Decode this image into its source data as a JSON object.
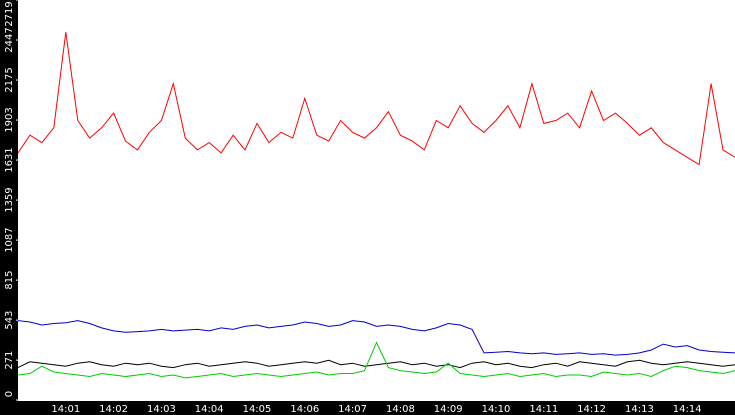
{
  "chart_data": {
    "type": "line",
    "categories": [
      null,
      null,
      null,
      null,
      "14:01",
      null,
      null,
      null,
      "14:02",
      null,
      null,
      null,
      "14:03",
      null,
      null,
      null,
      "14:04",
      null,
      null,
      null,
      "14:05",
      null,
      null,
      null,
      "14:06",
      null,
      null,
      null,
      "14:07",
      null,
      null,
      null,
      "14:08",
      null,
      null,
      null,
      "14:09",
      null,
      null,
      null,
      "14:10",
      null,
      null,
      null,
      "14:11",
      null,
      null,
      null,
      "14:12",
      null,
      null,
      null,
      "14:13",
      null,
      null,
      null,
      "14:14",
      null,
      null,
      null,
      null
    ],
    "series": [
      {
        "color": "#ff0000",
        "values": [
          1680,
          1800,
          1750,
          1850,
          2500,
          1900,
          1780,
          1850,
          1950,
          1760,
          1700,
          1820,
          1900,
          2150,
          1780,
          1700,
          1750,
          1680,
          1800,
          1700,
          1880,
          1750,
          1820,
          1780,
          2050,
          1800,
          1760,
          1900,
          1820,
          1780,
          1850,
          1960,
          1800,
          1760,
          1700,
          1900,
          1850,
          2000,
          1880,
          1820,
          1900,
          2000,
          1850,
          2150,
          1880,
          1900,
          1950,
          1850,
          2100,
          1900,
          1950,
          1880,
          1800,
          1850,
          1750,
          1700,
          1650,
          1600,
          2150,
          1700,
          1650
        ]
      },
      {
        "color": "#0000cc",
        "values": [
          540,
          530,
          510,
          520,
          525,
          540,
          520,
          490,
          470,
          460,
          465,
          470,
          480,
          470,
          475,
          480,
          470,
          490,
          480,
          500,
          510,
          490,
          500,
          510,
          530,
          520,
          500,
          510,
          540,
          530,
          500,
          510,
          500,
          480,
          470,
          490,
          520,
          510,
          480,
          320,
          325,
          330,
          320,
          315,
          320,
          310,
          315,
          320,
          310,
          315,
          305,
          310,
          320,
          340,
          380,
          360,
          370,
          340,
          330,
          325,
          320
        ]
      },
      {
        "color": "#000000",
        "values": [
          220,
          260,
          250,
          240,
          230,
          250,
          260,
          240,
          230,
          250,
          240,
          250,
          230,
          220,
          240,
          250,
          230,
          240,
          250,
          260,
          250,
          230,
          240,
          250,
          260,
          250,
          270,
          240,
          250,
          230,
          240,
          250,
          260,
          240,
          250,
          230,
          240,
          220,
          250,
          260,
          240,
          250,
          230,
          220,
          240,
          250,
          230,
          260,
          250,
          240,
          230,
          260,
          270,
          250,
          240,
          250,
          260,
          250,
          240,
          230,
          240
        ]
      },
      {
        "color": "#00cc00",
        "values": [
          170,
          180,
          230,
          190,
          180,
          170,
          160,
          180,
          170,
          160,
          170,
          180,
          160,
          170,
          150,
          160,
          170,
          180,
          160,
          170,
          180,
          170,
          160,
          170,
          180,
          190,
          170,
          180,
          180,
          200,
          390,
          220,
          200,
          190,
          180,
          190,
          250,
          180,
          170,
          160,
          170,
          180,
          160,
          170,
          180,
          160,
          170,
          170,
          160,
          190,
          180,
          170,
          180,
          160,
          200,
          230,
          220,
          200,
          190,
          180,
          200
        ]
      }
    ],
    "ylim": [
      0,
      2719
    ],
    "yticks": [
      0,
      271,
      543,
      815,
      1087,
      1359,
      1631,
      1903,
      2175,
      2447,
      2719
    ]
  }
}
